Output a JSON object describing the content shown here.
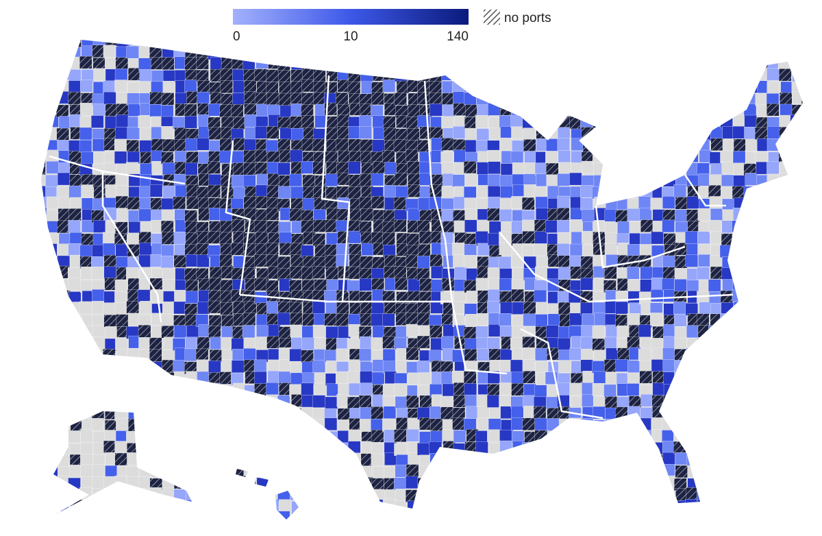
{
  "legend": {
    "ticks": [
      0,
      10,
      140
    ],
    "colors": [
      "#a3b1fc",
      "#3d58e8",
      "#0b1a7c"
    ],
    "no_data_label": "no ports"
  }
}
